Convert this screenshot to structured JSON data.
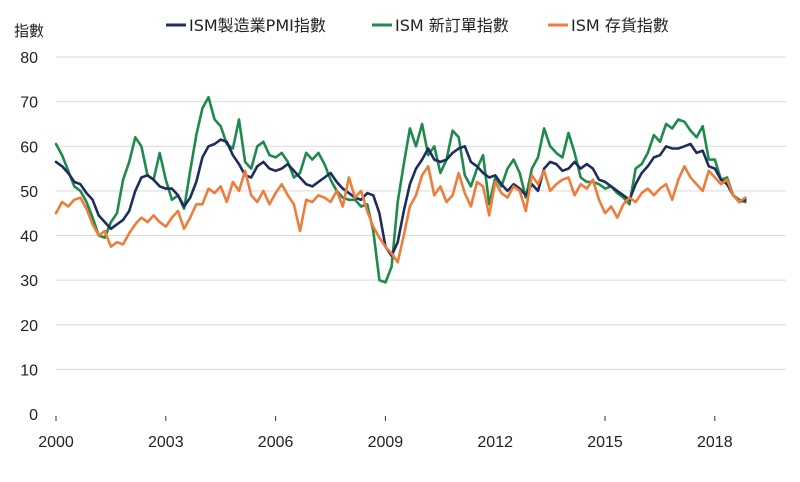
{
  "chart_data": {
    "type": "line",
    "title": "",
    "xlabel": "",
    "ylabel": "指數",
    "ylim": [
      0,
      80
    ],
    "yticks": [
      0,
      10,
      20,
      30,
      40,
      50,
      60,
      70,
      80
    ],
    "xlim": [
      2000,
      2020
    ],
    "xticks": [
      2000,
      2003,
      2006,
      2009,
      2012,
      2015,
      2018
    ],
    "xtick_marks": [
      2000,
      2003,
      2006,
      2009,
      2015,
      2018
    ],
    "grid": true,
    "legend_position": "top",
    "x_step_years": 0.1667,
    "x_start": 2000,
    "series": [
      {
        "name": "ISM製造業PMI指數",
        "color": "#1f2d5c",
        "values": [
          56.5,
          55.5,
          54.0,
          52.0,
          51.5,
          49.5,
          48.0,
          44.5,
          43.0,
          41.5,
          42.5,
          43.5,
          45.5,
          50.0,
          53.0,
          53.5,
          52.5,
          51.0,
          50.5,
          50.5,
          49.0,
          46.5,
          48.5,
          52.0,
          57.5,
          60.0,
          60.5,
          61.5,
          61.0,
          58.0,
          56.0,
          53.5,
          53.0,
          55.5,
          56.5,
          55.0,
          54.5,
          55.0,
          56.0,
          54.5,
          53.0,
          51.5,
          51.0,
          52.0,
          53.0,
          54.0,
          52.0,
          50.5,
          49.5,
          48.5,
          48.0,
          49.5,
          49.0,
          45.0,
          37.5,
          35.5,
          38.5,
          45.5,
          51.5,
          55.0,
          57.0,
          59.5,
          57.0,
          56.5,
          57.0,
          58.5,
          59.5,
          60.0,
          56.5,
          55.5,
          54.0,
          53.0,
          53.5,
          51.5,
          50.0,
          51.5,
          50.5,
          49.0,
          51.5,
          50.0,
          55.0,
          56.5,
          56.0,
          54.5,
          55.0,
          56.5,
          55.0,
          56.0,
          55.0,
          52.5,
          52.0,
          51.0,
          50.0,
          49.0,
          48.0,
          51.5,
          54.0,
          55.5,
          57.5,
          58.0,
          60.0,
          59.5,
          59.5,
          60.0,
          60.5,
          58.5,
          59.0,
          55.5,
          55.0,
          52.5,
          51.5,
          49.0,
          47.5,
          48.0
        ]
      },
      {
        "name": "ISM 新訂單指數",
        "color": "#1e8a4c",
        "values": [
          60.5,
          58.0,
          54.5,
          51.0,
          50.0,
          47.5,
          44.0,
          40.0,
          39.5,
          43.0,
          45.0,
          52.5,
          56.5,
          62.0,
          60.0,
          53.5,
          52.5,
          58.5,
          52.5,
          48.0,
          49.0,
          46.0,
          54.5,
          62.5,
          68.5,
          71.0,
          66.0,
          64.5,
          60.5,
          59.5,
          66.0,
          56.5,
          55.0,
          60.0,
          61.0,
          58.0,
          57.5,
          58.5,
          56.5,
          53.0,
          54.0,
          58.5,
          57.0,
          58.5,
          56.0,
          52.5,
          50.0,
          48.5,
          48.0,
          48.0,
          46.5,
          47.0,
          41.0,
          30.0,
          29.5,
          33.0,
          47.5,
          56.0,
          64.0,
          60.0,
          65.0,
          58.0,
          60.0,
          54.0,
          57.0,
          63.5,
          62.0,
          53.5,
          51.0,
          55.0,
          58.0,
          47.0,
          53.0,
          51.0,
          55.0,
          57.0,
          54.0,
          48.5,
          55.0,
          57.5,
          64.0,
          60.0,
          58.5,
          57.5,
          63.0,
          58.5,
          53.0,
          52.0,
          52.0,
          51.5,
          50.5,
          51.0,
          49.5,
          48.5,
          47.0,
          55.0,
          56.0,
          58.5,
          62.5,
          61.0,
          65.0,
          64.0,
          66.0,
          65.5,
          63.5,
          62.0,
          64.5,
          57.0,
          57.0,
          52.5,
          53.0,
          49.0,
          48.0,
          47.5
        ]
      },
      {
        "name": "ISM 存貨指數",
        "color": "#ee7d3b",
        "values": [
          45.0,
          47.5,
          46.5,
          48.0,
          48.5,
          46.0,
          42.5,
          40.0,
          41.0,
          37.5,
          38.5,
          38.0,
          40.5,
          42.5,
          44.0,
          43.0,
          44.5,
          43.0,
          42.0,
          44.0,
          45.5,
          41.5,
          44.0,
          47.0,
          47.0,
          50.5,
          49.5,
          51.0,
          47.5,
          52.0,
          50.0,
          54.5,
          49.0,
          47.5,
          50.0,
          47.0,
          49.5,
          51.5,
          49.0,
          47.0,
          41.0,
          48.0,
          47.5,
          49.0,
          48.5,
          47.5,
          50.0,
          46.5,
          53.0,
          48.5,
          50.0,
          45.5,
          42.0,
          39.5,
          37.5,
          36.0,
          34.0,
          40.0,
          46.5,
          49.0,
          53.5,
          55.5,
          49.0,
          51.0,
          47.5,
          49.0,
          54.0,
          49.5,
          46.5,
          52.0,
          51.0,
          44.5,
          52.0,
          49.5,
          48.5,
          51.0,
          50.0,
          45.5,
          53.5,
          51.5,
          54.5,
          50.0,
          51.5,
          52.5,
          53.0,
          49.0,
          51.5,
          50.5,
          52.5,
          48.0,
          45.0,
          46.5,
          44.0,
          47.0,
          48.5,
          47.5,
          49.5,
          50.5,
          49.0,
          50.5,
          51.5,
          48.0,
          52.5,
          55.5,
          53.0,
          51.5,
          50.0,
          54.5,
          53.0,
          51.5,
          52.5,
          49.0,
          47.5,
          48.5
        ]
      }
    ]
  }
}
